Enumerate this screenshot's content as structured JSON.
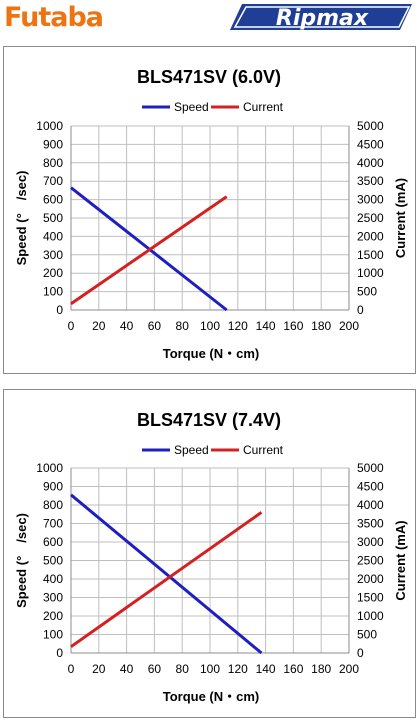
{
  "brand": {
    "left_logo": "Futaba",
    "right_logo": "Ripmax",
    "colors": {
      "futaba": "#ee7311",
      "ripmax": "#1f3f97"
    }
  },
  "chart_data": [
    {
      "type": "line",
      "title": "BLS471SV (6.0V)",
      "xlabel": "Torque (N・cm)",
      "ylabel": "Speed (°　/sec)",
      "y2label": "Current (mA)",
      "xlim": [
        0,
        200
      ],
      "ylim": [
        0,
        1000
      ],
      "y2lim": [
        0,
        5000
      ],
      "x_ticks": [
        "0",
        "20",
        "40",
        "60",
        "80",
        "100",
        "120",
        "140",
        "160",
        "180",
        "200"
      ],
      "y_ticks": [
        "0",
        "100",
        "200",
        "300",
        "400",
        "500",
        "600",
        "700",
        "800",
        "900",
        "1000"
      ],
      "y2_ticks": [
        "0",
        "500",
        "1000",
        "1500",
        "2000",
        "2500",
        "3000",
        "3500",
        "4000",
        "4500",
        "5000"
      ],
      "grid": true,
      "legend": "top",
      "series": [
        {
          "name": "Speed",
          "axis": "left",
          "color": "#1f1fbf",
          "x": [
            0,
            112
          ],
          "y": [
            665,
            0
          ]
        },
        {
          "name": "Current",
          "axis": "right",
          "color": "#d42020",
          "x": [
            0,
            112
          ],
          "y": [
            170,
            3080
          ]
        }
      ]
    },
    {
      "type": "line",
      "title": "BLS471SV (7.4V)",
      "xlabel": "Torque (N・cm)",
      "ylabel": "Speed (°　/sec)",
      "y2label": "Current (mA)",
      "xlim": [
        0,
        200
      ],
      "ylim": [
        0,
        1000
      ],
      "y2lim": [
        0,
        5000
      ],
      "x_ticks": [
        "0",
        "20",
        "40",
        "60",
        "80",
        "100",
        "120",
        "140",
        "160",
        "180",
        "200"
      ],
      "y_ticks": [
        "0",
        "100",
        "200",
        "300",
        "400",
        "500",
        "600",
        "700",
        "800",
        "900",
        "1000"
      ],
      "y2_ticks": [
        "0",
        "500",
        "1000",
        "1500",
        "2000",
        "2500",
        "3000",
        "3500",
        "4000",
        "4500",
        "5000"
      ],
      "grid": true,
      "legend": "top",
      "series": [
        {
          "name": "Speed",
          "axis": "left",
          "color": "#1f1fbf",
          "x": [
            0,
            137
          ],
          "y": [
            855,
            0
          ]
        },
        {
          "name": "Current",
          "axis": "right",
          "color": "#d42020",
          "x": [
            0,
            137
          ],
          "y": [
            170,
            3800
          ]
        }
      ]
    }
  ]
}
